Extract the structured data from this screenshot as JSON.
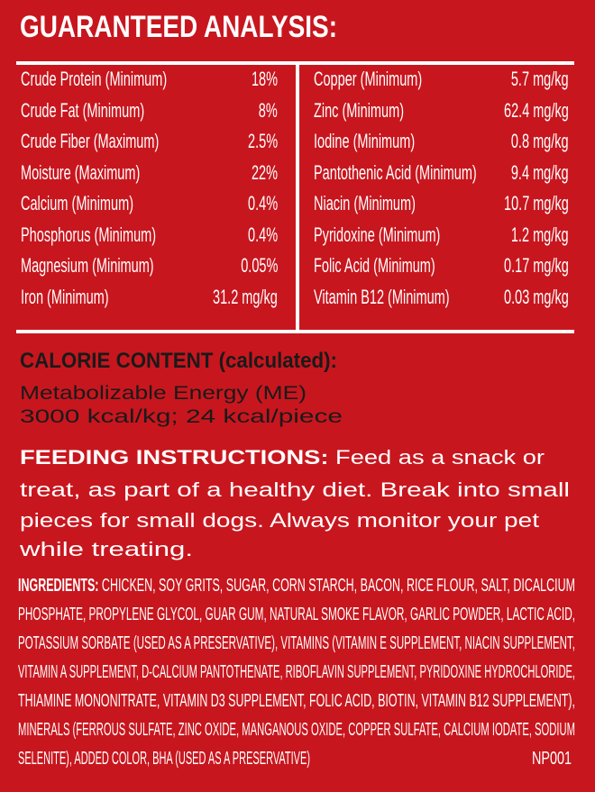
{
  "analysis": {
    "title": "GUARANTEED ANALYSIS:",
    "left": [
      {
        "label": "Crude Protein (Minimum)",
        "value": "18%"
      },
      {
        "label": "Crude Fat (Minimum)",
        "value": "8%"
      },
      {
        "label": "Crude Fiber (Maximum)",
        "value": "2.5%"
      },
      {
        "label": "Moisture (Maximum)",
        "value": "22%"
      },
      {
        "label": "Calcium (Minimum)",
        "value": "0.4%"
      },
      {
        "label": "Phosphorus (Minimum)",
        "value": "0.4%"
      },
      {
        "label": "Magnesium (Minimum)",
        "value": "0.05%"
      },
      {
        "label": "Iron (Minimum)",
        "value": "31.2 mg/kg"
      }
    ],
    "right": [
      {
        "label": "Copper (Minimum)",
        "value": "5.7 mg/kg"
      },
      {
        "label": "Zinc (Minimum)",
        "value": "62.4 mg/kg"
      },
      {
        "label": "Iodine (Minimum)",
        "value": "0.8 mg/kg"
      },
      {
        "label": "Pantothenic Acid (Minimum)",
        "value": "9.4 mg/kg"
      },
      {
        "label": "Niacin (Minimum)",
        "value": "10.7 mg/kg"
      },
      {
        "label": "Pyridoxine (Minimum)",
        "value": "1.2 mg/kg"
      },
      {
        "label": "Folic Acid (Minimum)",
        "value": "0.17 mg/kg"
      },
      {
        "label": "Vitamin B12 (Minimum)",
        "value": "0.03 mg/kg"
      }
    ]
  },
  "calorie": {
    "heading": "CALORIE CONTENT (calculated):",
    "lines": [
      "Metabolizable Energy (ME)",
      "3000 kcal/kg; 24 kcal/piece"
    ]
  },
  "feeding": {
    "heading": "FEEDING INSTRUCTIONS:",
    "lines": [
      " Feed as a snack or",
      "treat, as part of a healthy diet. Break into small",
      "pieces for small dogs. Always monitor your pet",
      "while treating."
    ]
  },
  "ingredients": {
    "heading": "INGREDIENTS:",
    "lines": [
      " CHICKEN, SOY GRITS, SUGAR, CORN STARCH, BACON, RICE FLOUR, SALT, DICALCIUM",
      "PHOSPHATE, PROPYLENE GLYCOL, GUAR GUM, NATURAL SMOKE FLAVOR, GARLIC POWDER, LACTIC ACID,",
      "POTASSIUM SORBATE (USED AS A PRESERVATIVE), VITAMINS (VITAMIN E SUPPLEMENT, NIACIN SUPPLEMENT,",
      "VITAMIN A SUPPLEMENT, D-CALCIUM PANTOTHENATE, RIBOFLAVIN SUPPLEMENT, PYRIDOXINE HYDROCHLORIDE,",
      "THIAMINE MONONITRATE, VITAMIN D3 SUPPLEMENT, FOLIC ACID, BIOTIN, VITAMIN B12 SUPPLEMENT),",
      "MINERALS (FERROUS SULFATE, ZINC OXIDE, MANGANOUS OXIDE, COPPER SULFATE, CALCIUM IODATE, SODIUM",
      "SELENITE), ADDED COLOR, BHA (USED AS A PRESERVATIVE)"
    ],
    "code": "NP001"
  },
  "colors": {
    "background": "#c8161e",
    "text": "#ffffff",
    "calorie_text": "#1a1a1a"
  }
}
